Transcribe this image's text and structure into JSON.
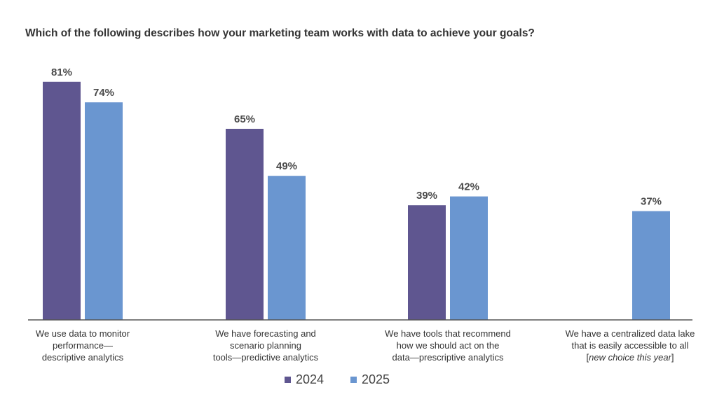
{
  "chart_data": {
    "type": "bar",
    "title": "Which of the following describes how your marketing team works with data to achieve your goals?",
    "xlabel": "",
    "ylabel": "",
    "ylim": [
      0,
      90
    ],
    "grid": false,
    "legend": "bottom",
    "categories": [
      {
        "lines": [
          "We use data to monitor",
          "performance—",
          "descriptive analytics"
        ]
      },
      {
        "lines": [
          "We have forecasting and",
          "scenario planning",
          "tools—predictive analytics"
        ]
      },
      {
        "lines": [
          "We have tools that recommend",
          "how we should act on the",
          "data—prescriptive analytics"
        ]
      },
      {
        "lines": [
          "We have a centralized data lake",
          "that is easily accessible to all"
        ],
        "note": "new choice this year"
      }
    ],
    "series": [
      {
        "name": "2024",
        "color": "#5f5690",
        "values": [
          81,
          65,
          39,
          null
        ],
        "labels": [
          "81%",
          "65%",
          "39%",
          ""
        ]
      },
      {
        "name": "2025",
        "color": "#6a96d0",
        "values": [
          74,
          49,
          42,
          37
        ],
        "labels": [
          "74%",
          "49%",
          "42%",
          "37%"
        ]
      }
    ]
  }
}
